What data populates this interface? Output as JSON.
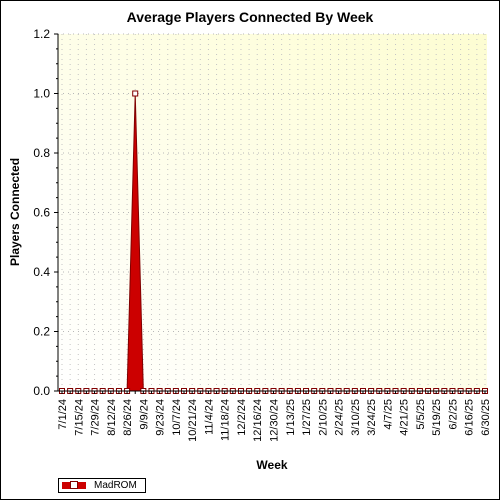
{
  "chart_data": {
    "type": "area",
    "title": "Average Players Connected By Week",
    "xlabel": "Week",
    "ylabel": "Players Connected",
    "ylim": [
      0,
      1.2
    ],
    "yticks": [
      "0.0",
      "0.2",
      "0.4",
      "0.6",
      "0.8",
      "1.0",
      "1.2"
    ],
    "grid": true,
    "legend_position": "bottom-left",
    "x": [
      "7/1/24",
      "7/8/24",
      "7/15/24",
      "7/22/24",
      "7/29/24",
      "8/5/24",
      "8/12/24",
      "8/19/24",
      "8/26/24",
      "9/2/24",
      "9/9/24",
      "9/16/24",
      "9/23/24",
      "9/30/24",
      "10/7/24",
      "10/14/24",
      "10/21/24",
      "10/28/24",
      "11/4/24",
      "11/11/24",
      "11/18/24",
      "11/25/24",
      "12/2/24",
      "12/9/24",
      "12/16/24",
      "12/23/24",
      "12/30/24",
      "1/6/25",
      "1/13/25",
      "1/20/25",
      "1/27/25",
      "2/3/25",
      "2/10/25",
      "2/17/25",
      "2/24/25",
      "3/3/25",
      "3/10/25",
      "3/17/25",
      "3/24/25",
      "3/31/25",
      "4/7/25",
      "4/14/25",
      "4/21/25",
      "4/28/25",
      "5/5/25",
      "5/12/25",
      "5/19/25",
      "5/26/25",
      "6/2/25",
      "6/9/25",
      "6/16/25",
      "6/23/25",
      "6/30/25"
    ],
    "tick_labels": [
      "7/1/24",
      "7/15/24",
      "7/29/24",
      "8/12/24",
      "8/26/24",
      "9/9/24",
      "9/23/24",
      "10/7/24",
      "10/21/24",
      "11/4/24",
      "11/18/24",
      "12/2/24",
      "12/16/24",
      "12/30/24",
      "1/13/25",
      "1/27/25",
      "2/10/25",
      "2/24/25",
      "3/10/25",
      "3/24/25",
      "4/7/25",
      "4/21/25",
      "5/5/25",
      "5/19/25",
      "6/2/25",
      "6/16/25",
      "6/30/25"
    ],
    "series": [
      {
        "name": "MadROM",
        "color": "#cc0000",
        "values": [
          0,
          0,
          0,
          0,
          0,
          0,
          0,
          0,
          0,
          1.0,
          0,
          0,
          0,
          0,
          0,
          0,
          0,
          0,
          0,
          0,
          0,
          0,
          0,
          0,
          0,
          0,
          0,
          0,
          0,
          0,
          0,
          0,
          0,
          0,
          0,
          0,
          0,
          0,
          0,
          0,
          0,
          0,
          0,
          0,
          0,
          0,
          0,
          0,
          0,
          0,
          0,
          0,
          0
        ]
      }
    ]
  },
  "colors": {
    "plot_gradient_top": "#fdfdd2",
    "plot_gradient_bottom": "#ffffff",
    "series_fill": "#cc0000",
    "series_dark": "#800000"
  }
}
